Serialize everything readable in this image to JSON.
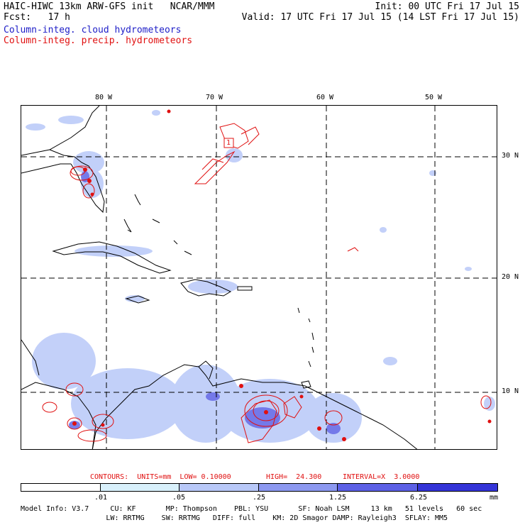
{
  "header": {
    "title_line": "HAIC-HIWC 13km ARW-GFS init   NCAR/MMM",
    "fcst_label": "Fcst:   17 h",
    "init": "Init: 00 UTC Fri 17 Jul 15",
    "valid": "Valid: 17 UTC Fri 17 Jul 15 (14 LST Fri 17 Jul 15)",
    "field_cloud": "Column-integ. cloud hydrometeors",
    "field_precip": "Column-integ. precip. hydrometeors"
  },
  "map": {
    "lon_labels": [
      "80 W",
      "70 W",
      "60 W",
      "50 W"
    ],
    "lat_labels": [
      "30 N",
      "20 N",
      "10 N"
    ],
    "contour_label": "1"
  },
  "contours": {
    "units": "CONTOURS:  UNITS=mm  LOW= 0.10000",
    "high": "HIGH=  24.300",
    "interval": "INTERVAL=X  3.0000"
  },
  "colorbar": {
    "colors": [
      "#ffffff",
      "#d8f0fb",
      "#b8c8f8",
      "#8c98f0",
      "#5c60e6",
      "#3434d8",
      "#1010ee"
    ],
    "labels": [
      ".01",
      ".05",
      ".25",
      "1.25",
      "6.25"
    ],
    "units": "mm"
  },
  "model_info": {
    "line1": "Model Info: V3.7     CU: KF       MP: Thompson    PBL: YSU       SF: Noah LSM     13 km   51 levels   60 sec",
    "line2": "                    LW: RRTMG    SW: RRTMG   DIFF: full    KM: 2D Smagor DAMP: Rayleigh3  SFLAY: MM5"
  },
  "colors": {
    "cloud": "#2020c8",
    "precip": "#e01010",
    "coast": "#000000"
  }
}
